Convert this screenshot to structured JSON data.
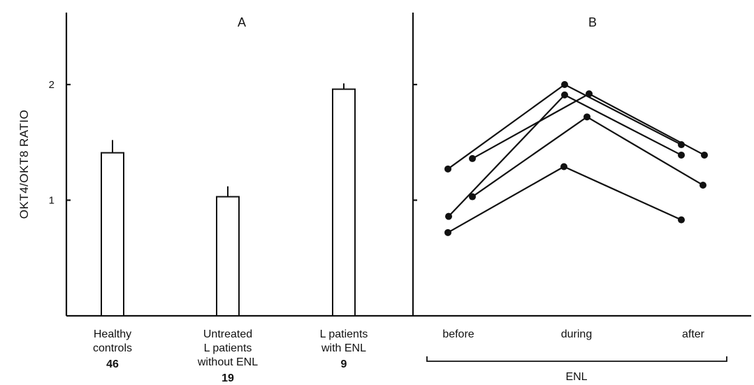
{
  "chart_data": [
    {
      "panel": "A",
      "type": "bar",
      "ylabel": "OKT4/OKT8 RATIO",
      "yticks": [
        1,
        2
      ],
      "ylim": [
        0,
        2.5
      ],
      "categories": [
        {
          "lines": [
            "Healthy",
            "controls"
          ],
          "n": "46"
        },
        {
          "lines": [
            "Untreated",
            "L patients",
            "without ENL"
          ],
          "n": "19"
        },
        {
          "lines": [
            "L patients",
            "with ENL"
          ],
          "n": "9"
        }
      ],
      "values": [
        1.41,
        1.03,
        1.96
      ],
      "errors": [
        0.11,
        0.09,
        0.05
      ]
    },
    {
      "panel": "B",
      "type": "line",
      "categories": [
        "before",
        "during",
        "after"
      ],
      "group_label": "ENL",
      "series": [
        {
          "values": [
            1.27,
            2.0,
            1.48
          ]
        },
        {
          "values": [
            1.36,
            1.92,
            1.39
          ]
        },
        {
          "values": [
            0.86,
            1.91,
            1.39
          ]
        },
        {
          "values": [
            1.03,
            1.72,
            1.13
          ]
        },
        {
          "values": [
            0.72,
            1.29,
            0.83
          ]
        }
      ]
    }
  ]
}
